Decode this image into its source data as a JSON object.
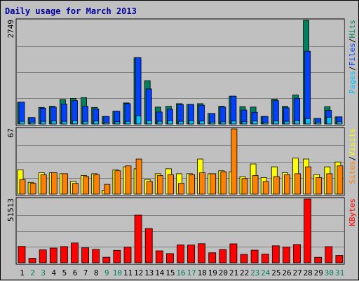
{
  "chart_data": {
    "type": "bar",
    "title": "Daily usage for March 2013",
    "x": [
      "1",
      "2",
      "3",
      "4",
      "5",
      "6",
      "7",
      "8",
      "9",
      "10",
      "11",
      "12",
      "13",
      "14",
      "15",
      "16",
      "17",
      "18",
      "19",
      "20",
      "21",
      "22",
      "23",
      "24",
      "25",
      "26",
      "27",
      "28",
      "29",
      "30",
      "31"
    ],
    "weekend_days": [
      "2",
      "3",
      "9",
      "10",
      "16",
      "17",
      "23",
      "24",
      "30",
      "31"
    ],
    "colors": {
      "hits": "#00805c",
      "files": "#0040ff",
      "pages": "#00c0ff",
      "visits": "#ffff00",
      "sites": "#ff8000",
      "kbytes": "#ff0000",
      "title": "#0000a0",
      "weekday_label": "#000000",
      "weekend_label": "#00805c",
      "panel_bg": "#c0c0c0",
      "grid": "#808080"
    },
    "panels": [
      {
        "id": "hits",
        "max_label": "2749",
        "ymax": 2749,
        "legend": [
          {
            "text": "Pages",
            "color": "#00c0ff"
          },
          {
            "text": "/",
            "color": "#000000"
          },
          {
            "text": "Files",
            "color": "#0040ff"
          },
          {
            "text": "/",
            "color": "#000000"
          },
          {
            "text": "Hits",
            "color": "#00805c"
          }
        ],
        "series": [
          {
            "name": "Hits",
            "color": "#00805c",
            "values": [
              580,
              170,
              440,
              470,
              650,
              680,
              700,
              440,
              200,
              340,
              560,
              1760,
              1150,
              450,
              470,
              540,
              520,
              540,
              280,
              470,
              740,
              460,
              450,
              200,
              660,
              470,
              770,
              2749,
              150,
              460,
              190
            ]
          },
          {
            "name": "Files",
            "color": "#0040ff",
            "values": [
              580,
              170,
              420,
              450,
              530,
              620,
              470,
              400,
              200,
              340,
              540,
              1760,
              930,
              320,
              390,
              520,
              520,
              500,
              280,
              450,
              740,
              370,
              310,
              200,
              620,
              430,
              680,
              1930,
              150,
              360,
              190
            ]
          },
          {
            "name": "Pages",
            "color": "#00c0ff",
            "values": [
              70,
              50,
              70,
              80,
              70,
              90,
              70,
              80,
              40,
              60,
              70,
              220,
              90,
              70,
              90,
              70,
              90,
              80,
              50,
              60,
              80,
              60,
              80,
              40,
              80,
              70,
              90,
              140,
              50,
              180,
              60
            ]
          }
        ]
      },
      {
        "id": "visits",
        "max_label": "67",
        "ymax": 67,
        "legend": [
          {
            "text": "Sites",
            "color": "#ff8000"
          },
          {
            "text": "/",
            "color": "#000000"
          },
          {
            "text": "Visits",
            "color": "#ffff00"
          }
        ],
        "series": [
          {
            "name": "Visits",
            "color": "#ffff00",
            "values": [
              25,
              12,
              22,
              22,
              21,
              13,
              19,
              21,
              4,
              25,
              28,
              26,
              15,
              21,
              26,
              21,
              21,
              36,
              21,
              24,
              23,
              18,
              31,
              17,
              28,
              22,
              37,
              36,
              20,
              28,
              33
            ]
          },
          {
            "name": "Sites",
            "color": "#ff8000",
            "values": [
              15,
              11,
              20,
              22,
              21,
              11,
              18,
              20,
              10,
              24,
              29,
              36,
              13,
              19,
              20,
              11,
              20,
              22,
              21,
              23,
              67,
              16,
              19,
              13,
              18,
              20,
              21,
              28,
              17,
              21,
              29
            ]
          }
        ]
      },
      {
        "id": "kbytes",
        "max_label": "51513",
        "ymax": 51513,
        "legend": [
          {
            "text": "KBytes",
            "color": "#ff0000"
          }
        ],
        "series": [
          {
            "name": "KBytes",
            "color": "#ff0000",
            "values": [
              13200,
              3700,
              10500,
              11900,
              13100,
              16000,
              12100,
              10800,
              4500,
              10000,
              12700,
              38500,
              27700,
              9600,
              7400,
              14500,
              14400,
              15400,
              8100,
              10700,
              15300,
              6800,
              10200,
              7000,
              13700,
              12800,
              14800,
              51513,
              4400,
              13000,
              5900
            ]
          }
        ]
      }
    ]
  }
}
